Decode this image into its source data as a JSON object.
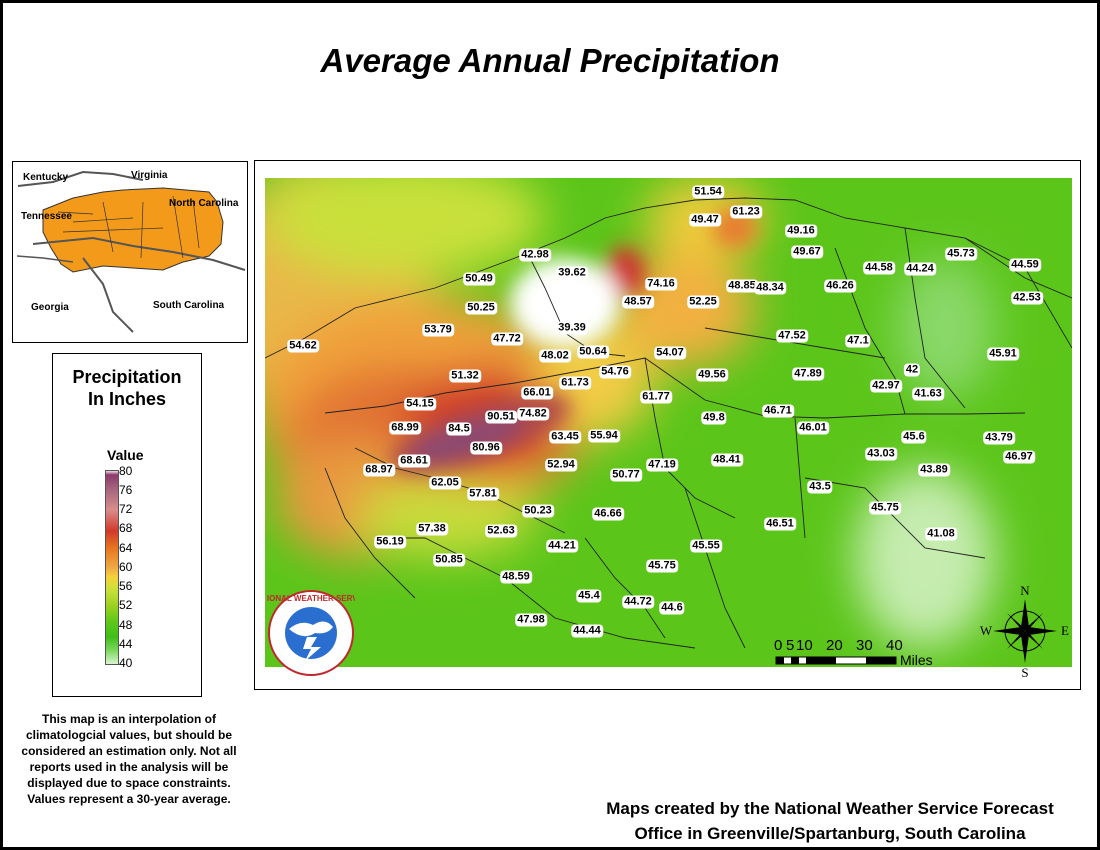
{
  "title": "Average Annual Precipitation",
  "locator": {
    "labels": [
      "Kentucky",
      "Virginia",
      "Tennessee",
      "North Carolina",
      "Georgia",
      "South Carolina"
    ]
  },
  "legend": {
    "title_line1": "Precipitation",
    "title_line2": "In Inches",
    "value_label": "Value",
    "ticks": [
      "80",
      "76",
      "72",
      "68",
      "64",
      "60",
      "56",
      "52",
      "48",
      "44",
      "40"
    ]
  },
  "disclaimer": "This map is an interpolation of climatologcial values, but should be considered an estimation only. Not all reports used in the analysis will be displayed due to space constraints. Values represent a 30-year average.",
  "credit": {
    "line1": "Maps created by the National Weather Service Forecast",
    "line2": "Office in Greenville/Spartanburg, South Carolina"
  },
  "scale_bar": {
    "ticks": [
      "0",
      "5",
      "10",
      "20",
      "30",
      "40"
    ],
    "unit": "Miles"
  },
  "compass": {
    "n": "N",
    "s": "S",
    "e": "E",
    "w": "W"
  },
  "logo": {
    "text": "NATIONAL WEATHER SERVICE"
  },
  "station_values": [
    "51.54",
    "49.47",
    "61.23",
    "49.16",
    "42.98",
    "39.62",
    "74.16",
    "48.57",
    "50.49",
    "50.25",
    "39.39",
    "52.25",
    "48.85",
    "48.34",
    "49.67",
    "46.26",
    "44.58",
    "44.24",
    "45.73",
    "44.59",
    "42.53",
    "54.62",
    "53.79",
    "47.72",
    "48.02",
    "50.64",
    "54.07",
    "47.52",
    "47.1",
    "45.91",
    "51.32",
    "54.76",
    "49.56",
    "47.89",
    "42.97",
    "42",
    "41.63",
    "66.01",
    "61.73",
    "54.15",
    "90.51",
    "74.82",
    "61.77",
    "49.8",
    "46.71",
    "46.01",
    "68.99",
    "84.5",
    "63.45",
    "55.94",
    "45.6",
    "43.79",
    "46.97",
    "80.96",
    "43.03",
    "43.89",
    "68.97",
    "68.61",
    "52.94",
    "50.77",
    "47.19",
    "48.41",
    "62.05",
    "57.81",
    "43.5",
    "45.75",
    "50.23",
    "46.66",
    "46.51",
    "41.08",
    "57.38",
    "52.63",
    "56.19",
    "44.21",
    "45.55",
    "50.85",
    "48.59",
    "45.75",
    "45.4",
    "44.72",
    "44.6",
    "47.98",
    "44.44"
  ]
}
